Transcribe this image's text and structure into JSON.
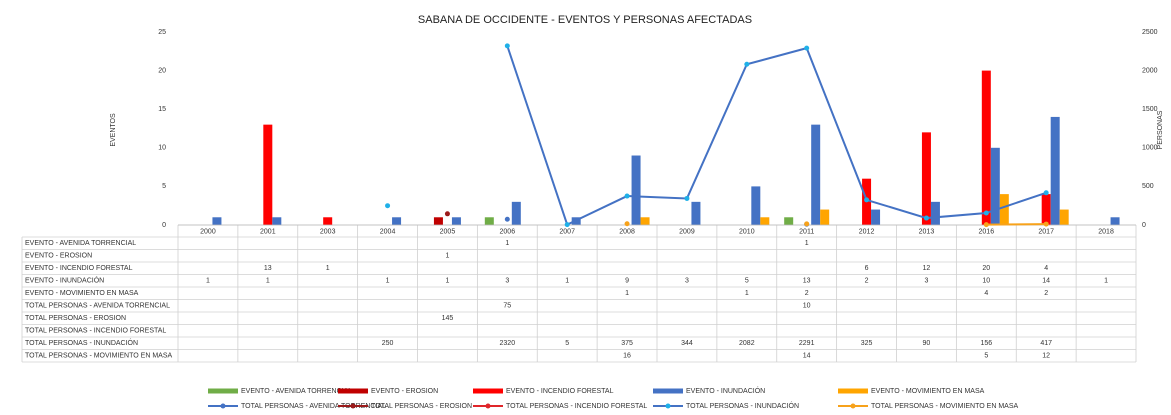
{
  "chart_data": {
    "type": "bar",
    "title": "SABANA DE OCCIDENTE - EVENTOS Y PERSONAS AFECTADAS",
    "y_label": "EVENTOS",
    "y2_label": "PERSONAS",
    "categories": [
      "2000",
      "2001",
      "2003",
      "2004",
      "2005",
      "2006",
      "2007",
      "2008",
      "2009",
      "2010",
      "2011",
      "2012",
      "2013",
      "2016",
      "2017",
      "2018"
    ],
    "ylim": [
      0,
      25
    ],
    "yticks": [
      0,
      5,
      10,
      15,
      20,
      25
    ],
    "y2lim": [
      0,
      2500
    ],
    "y2ticks": [
      0,
      500,
      1000,
      1500,
      2000,
      2500
    ],
    "grid": false,
    "legend": "bottom",
    "series": [
      {
        "name": "EVENTO  - AVENIDA TORRENCIAL",
        "type": "bar",
        "color": "#70ad47",
        "values": [
          null,
          null,
          null,
          null,
          null,
          1,
          null,
          null,
          null,
          null,
          1,
          null,
          null,
          null,
          null,
          null
        ]
      },
      {
        "name": "EVENTO  - EROSION",
        "type": "bar",
        "color": "#c00000",
        "values": [
          null,
          null,
          null,
          null,
          1,
          null,
          null,
          null,
          null,
          null,
          null,
          null,
          null,
          null,
          null,
          null
        ]
      },
      {
        "name": "EVENTO  - INCENDIO FORESTAL",
        "type": "bar",
        "color": "#ff0000",
        "values": [
          null,
          13,
          1,
          null,
          null,
          null,
          null,
          null,
          null,
          null,
          null,
          6,
          12,
          20,
          4,
          null
        ]
      },
      {
        "name": "EVENTO  - INUNDACIÓN",
        "type": "bar",
        "color": "#4472c4",
        "values": [
          1,
          1,
          null,
          1,
          1,
          3,
          1,
          9,
          3,
          5,
          13,
          2,
          3,
          10,
          14,
          1
        ]
      },
      {
        "name": "EVENTO  - MOVIMIENTO EN MASA",
        "type": "bar",
        "color": "#ffa500",
        "values": [
          null,
          null,
          null,
          null,
          null,
          null,
          null,
          1,
          null,
          1,
          2,
          null,
          null,
          4,
          2,
          null
        ]
      },
      {
        "name": "TOTAL PERSONAS - AVENIDA TORRENCIAL",
        "type": "line",
        "axis": "y2",
        "color": "#4472c4",
        "values": [
          null,
          null,
          null,
          null,
          null,
          75,
          null,
          null,
          null,
          null,
          10,
          null,
          null,
          null,
          null,
          null
        ]
      },
      {
        "name": "TOTAL PERSONAS - EROSION",
        "type": "line",
        "axis": "y2",
        "color": "#9b1b1b",
        "values": [
          null,
          null,
          null,
          null,
          145,
          null,
          null,
          null,
          null,
          null,
          null,
          null,
          null,
          null,
          null,
          null
        ]
      },
      {
        "name": "TOTAL PERSONAS - INCENDIO FORESTAL",
        "type": "line",
        "axis": "y2",
        "color": "#e0262a",
        "values": [
          null,
          null,
          null,
          null,
          null,
          null,
          null,
          null,
          null,
          null,
          null,
          null,
          null,
          null,
          null,
          null
        ]
      },
      {
        "name": "TOTAL PERSONAS - INUNDACIÓN",
        "type": "line",
        "axis": "y2",
        "color": "#1fb0e8",
        "line_color": "#4472c4",
        "values": [
          null,
          null,
          null,
          250,
          null,
          2320,
          5,
          375,
          344,
          2082,
          2291,
          325,
          90,
          156,
          417,
          null
        ]
      },
      {
        "name": "TOTAL PERSONAS - MOVIMIENTO EN MASA",
        "type": "line",
        "axis": "y2",
        "color": "#f7a21b",
        "values": [
          null,
          null,
          null,
          null,
          null,
          null,
          null,
          16,
          null,
          null,
          14,
          null,
          null,
          5,
          12,
          null
        ]
      }
    ]
  }
}
